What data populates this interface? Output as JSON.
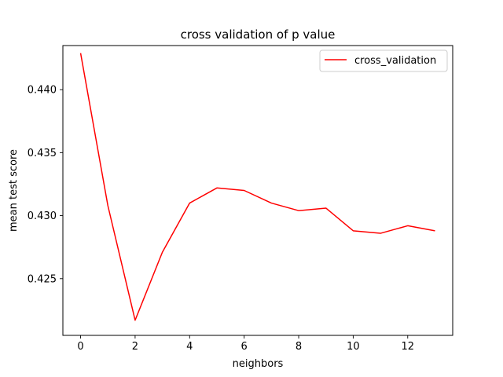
{
  "chart_data": {
    "type": "line",
    "title": "cross validation of p value",
    "xlabel": "neighbors",
    "ylabel": "mean test score",
    "xlim": [
      -0.65,
      13.65
    ],
    "ylim": [
      0.4205,
      0.4435
    ],
    "xticks": [
      0,
      2,
      4,
      6,
      8,
      10,
      12
    ],
    "yticks": [
      0.425,
      0.43,
      0.435,
      0.44
    ],
    "ytick_labels": [
      "0.425",
      "0.430",
      "0.435",
      "0.440"
    ],
    "grid": false,
    "legend": {
      "position": "upper-right"
    },
    "series": [
      {
        "name": "cross_validation",
        "color": "#ff0000",
        "x": [
          0,
          1,
          2,
          3,
          4,
          5,
          6,
          7,
          8,
          9,
          10,
          11,
          12,
          13
        ],
        "y": [
          0.4429,
          0.4308,
          0.4217,
          0.4271,
          0.431,
          0.4322,
          0.432,
          0.431,
          0.4304,
          0.4306,
          0.4288,
          0.4286,
          0.4292,
          0.4288
        ]
      }
    ]
  }
}
